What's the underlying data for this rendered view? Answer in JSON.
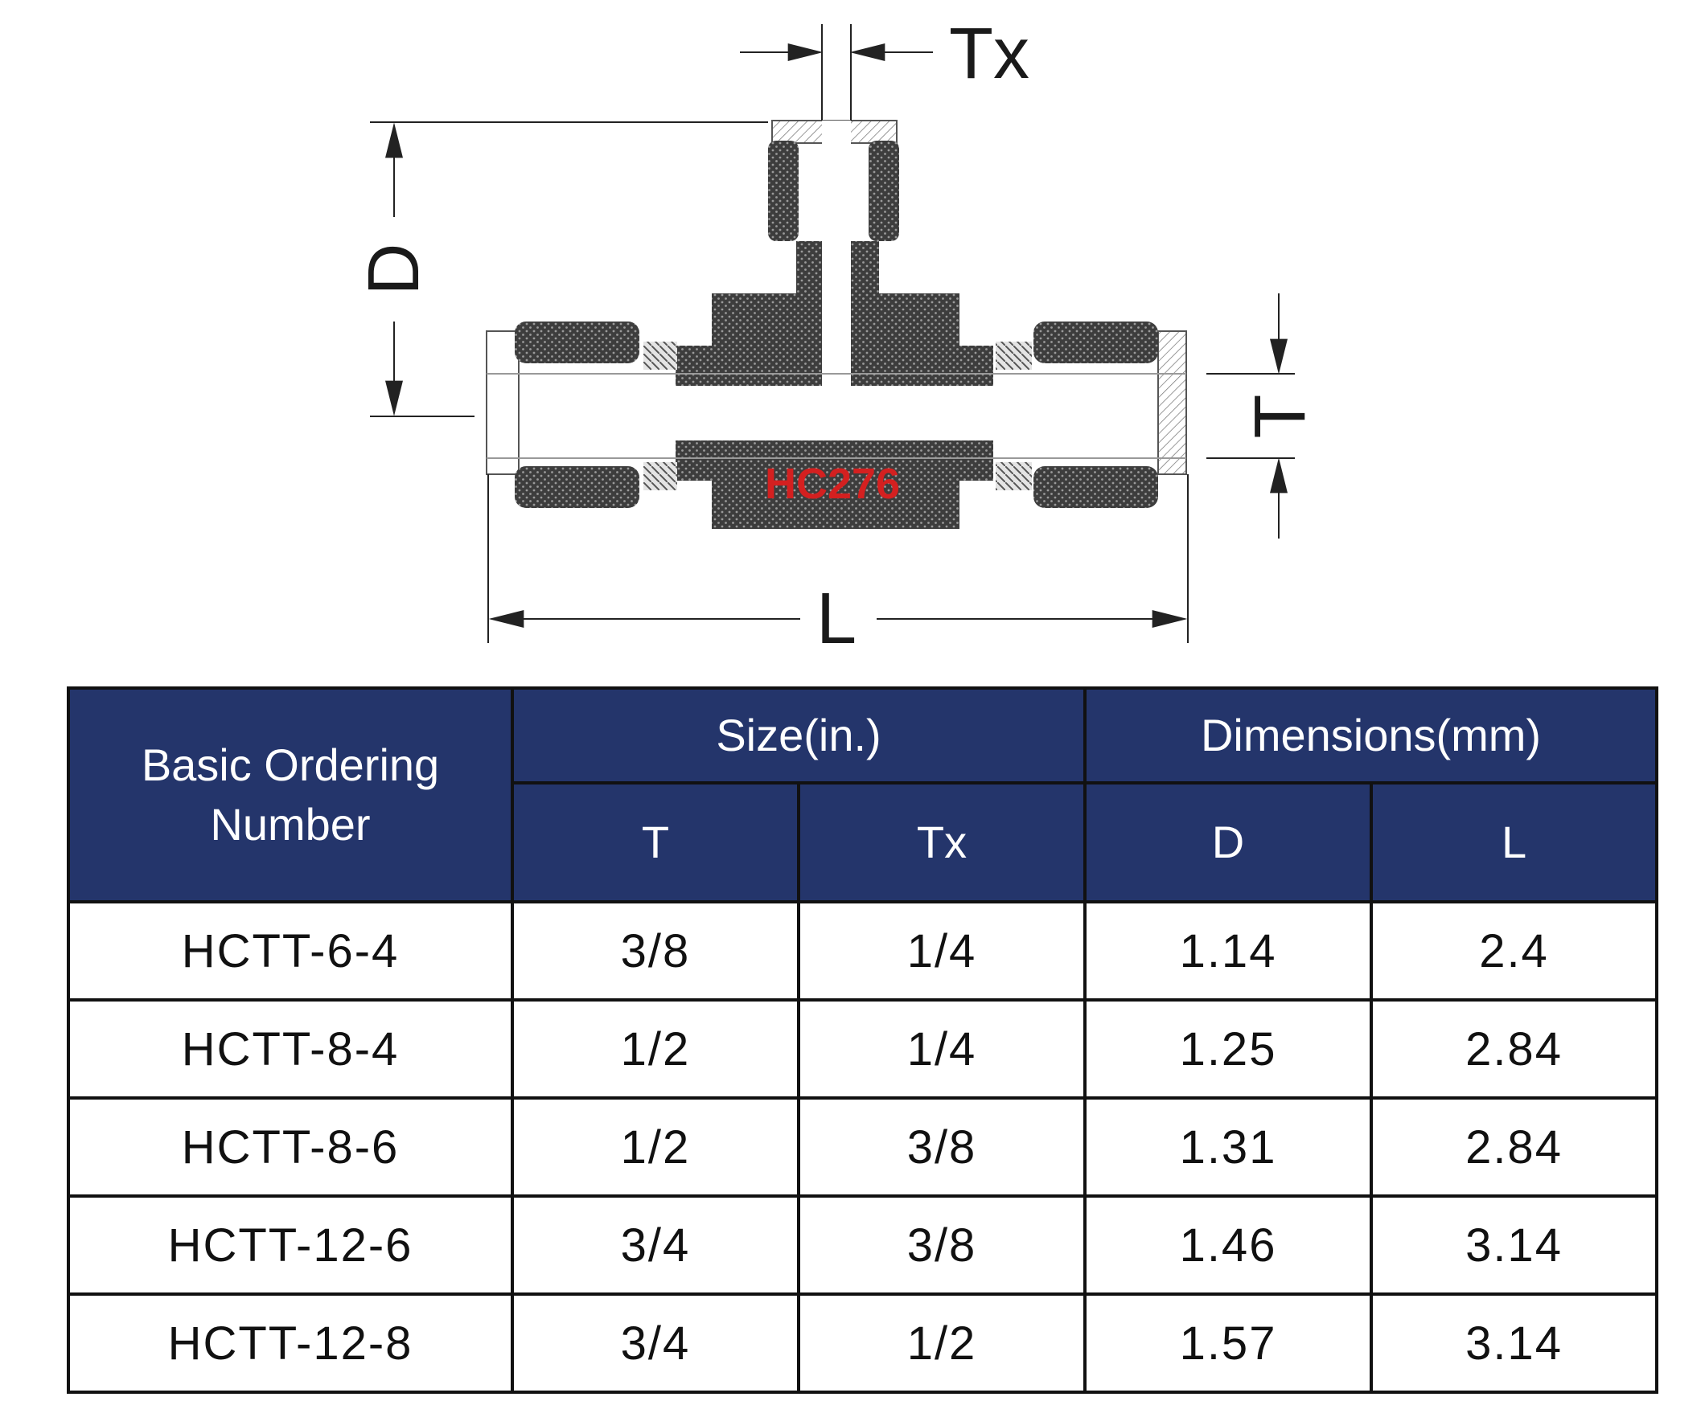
{
  "drawing": {
    "dimension_labels": {
      "tx": "Tx",
      "d": "D",
      "t": "T",
      "l": "L"
    },
    "material_mark": "HC276",
    "colors": {
      "body": "#4a4a4a",
      "mark": "#d42020",
      "line": "#222222"
    }
  },
  "table": {
    "headers": {
      "ordering_number": "Basic Ordering Number",
      "size_group": "Size(in.)",
      "dimensions_group": "Dimensions(mm)",
      "size_t": "T",
      "size_tx": "Tx",
      "dim_d": "D",
      "dim_l": "L"
    },
    "rows": [
      {
        "part": "HCTT-6-4",
        "t": "3/8",
        "tx": "1/4",
        "d": "1.14",
        "l": "2.4"
      },
      {
        "part": "HCTT-8-4",
        "t": "1/2",
        "tx": "1/4",
        "d": "1.25",
        "l": "2.84"
      },
      {
        "part": "HCTT-8-6",
        "t": "1/2",
        "tx": "3/8",
        "d": "1.31",
        "l": "2.84"
      },
      {
        "part": "HCTT-12-6",
        "t": "3/4",
        "tx": "3/8",
        "d": "1.46",
        "l": "3.14"
      },
      {
        "part": "HCTT-12-8",
        "t": "3/4",
        "tx": "1/2",
        "d": "1.57",
        "l": "3.14"
      }
    ],
    "colors": {
      "header_bg": "#24356b",
      "header_text": "#ffffff",
      "border": "#111111"
    }
  }
}
